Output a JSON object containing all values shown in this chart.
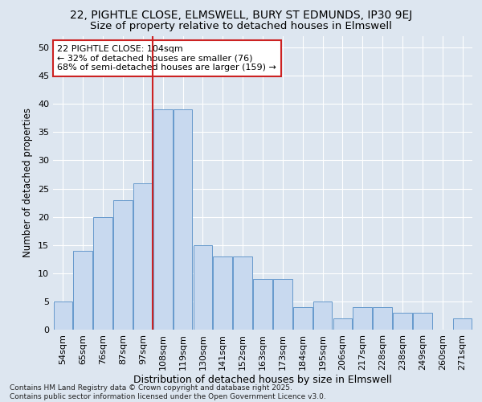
{
  "title": "22, PIGHTLE CLOSE, ELMSWELL, BURY ST EDMUNDS, IP30 9EJ",
  "subtitle": "Size of property relative to detached houses in Elmswell",
  "xlabel": "Distribution of detached houses by size in Elmswell",
  "ylabel": "Number of detached properties",
  "categories": [
    "54sqm",
    "65sqm",
    "76sqm",
    "87sqm",
    "97sqm",
    "108sqm",
    "119sqm",
    "130sqm",
    "141sqm",
    "152sqm",
    "163sqm",
    "173sqm",
    "184sqm",
    "195sqm",
    "206sqm",
    "217sqm",
    "228sqm",
    "238sqm",
    "249sqm",
    "260sqm",
    "271sqm"
  ],
  "values": [
    5,
    14,
    20,
    23,
    26,
    39,
    39,
    15,
    13,
    13,
    9,
    9,
    4,
    5,
    2,
    4,
    4,
    3,
    3,
    0,
    2
  ],
  "bar_color": "#c8d9ef",
  "bar_edge_color": "#6699cc",
  "vline_color": "#cc2222",
  "vline_x_index": 4.5,
  "annotation_text": "22 PIGHTLE CLOSE: 104sqm\n← 32% of detached houses are smaller (76)\n68% of semi-detached houses are larger (159) →",
  "annotation_box_facecolor": "#ffffff",
  "annotation_box_edgecolor": "#cc2222",
  "ylim": [
    0,
    52
  ],
  "yticks": [
    0,
    5,
    10,
    15,
    20,
    25,
    30,
    35,
    40,
    45,
    50
  ],
  "background_color": "#dde6f0",
  "grid_color": "#ffffff",
  "footer": "Contains HM Land Registry data © Crown copyright and database right 2025.\nContains public sector information licensed under the Open Government Licence v3.0.",
  "title_fontsize": 10,
  "subtitle_fontsize": 9.5,
  "xlabel_fontsize": 9,
  "ylabel_fontsize": 8.5,
  "tick_fontsize": 8,
  "annotation_fontsize": 8,
  "footer_fontsize": 6.5
}
